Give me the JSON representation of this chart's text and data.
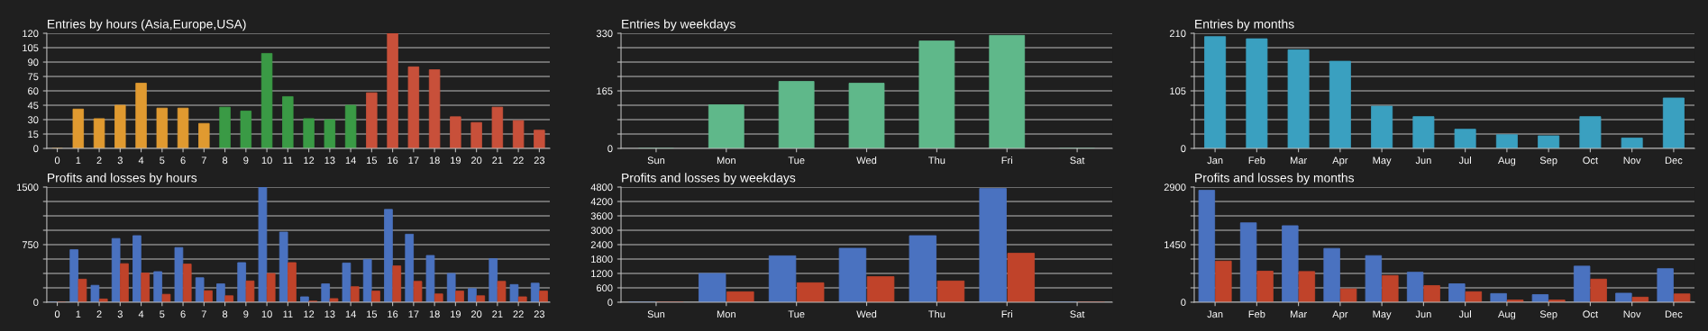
{
  "chart_data": [
    {
      "type": "bar",
      "title": "Entries by hours (Asia,Europe,USA)",
      "categories": [
        "0",
        "1",
        "2",
        "3",
        "4",
        "5",
        "6",
        "7",
        "8",
        "9",
        "10",
        "11",
        "12",
        "13",
        "14",
        "15",
        "16",
        "17",
        "18",
        "19",
        "20",
        "21",
        "22",
        "23"
      ],
      "values": [
        0,
        41,
        31,
        45,
        68,
        42,
        42,
        26,
        43,
        39,
        99,
        54,
        31,
        30,
        45,
        58,
        120,
        85,
        82,
        33,
        27,
        43,
        29,
        19
      ],
      "colors": [
        "#e09a30",
        "#e09a30",
        "#e09a30",
        "#e09a30",
        "#e09a30",
        "#e09a30",
        "#e09a30",
        "#e09a30",
        "#3a9a45",
        "#3a9a45",
        "#3a9a45",
        "#3a9a45",
        "#3a9a45",
        "#3a9a45",
        "#3a9a45",
        "#c8503a",
        "#c8503a",
        "#c8503a",
        "#c8503a",
        "#c8503a",
        "#c8503a",
        "#c8503a",
        "#c8503a",
        "#c8503a"
      ],
      "ylim": [
        0,
        120
      ],
      "yticks": [
        0,
        15,
        30,
        45,
        60,
        75,
        90,
        105,
        120
      ],
      "grid": "y"
    },
    {
      "type": "bar",
      "title": "Entries by weekdays",
      "categories": [
        "Sun",
        "Mon",
        "Tue",
        "Wed",
        "Thu",
        "Fri",
        "Sat"
      ],
      "values": [
        0,
        125,
        192,
        187,
        308,
        324,
        0
      ],
      "color": "#5fb88a",
      "ylim": [
        0,
        330
      ],
      "yticks": [
        0,
        {
          "value": 41.25,
          "label": null
        },
        {
          "value": 82.5,
          "label": null
        },
        {
          "value": 123.75,
          "label": null
        },
        165,
        {
          "value": 206.25,
          "label": null
        },
        {
          "value": 247.5,
          "label": null
        },
        {
          "value": 288.75,
          "label": null
        },
        330
      ],
      "grid": "y"
    },
    {
      "type": "bar",
      "title": "Entries by months",
      "categories": [
        "Jan",
        "Feb",
        "Mar",
        "Apr",
        "May",
        "Jun",
        "Jul",
        "Aug",
        "Sep",
        "Oct",
        "Nov",
        "Dec"
      ],
      "values": [
        204,
        200,
        180,
        159,
        77,
        58,
        35,
        25,
        23,
        58,
        19,
        92
      ],
      "color": "#3aa0c0",
      "ylim": [
        0,
        210
      ],
      "yticks": [
        0,
        {
          "value": 26.25,
          "label": null
        },
        {
          "value": 52.5,
          "label": null
        },
        {
          "value": 78.75,
          "label": null
        },
        105,
        {
          "value": 131.25,
          "label": null
        },
        {
          "value": 157.5,
          "label": null
        },
        {
          "value": 183.75,
          "label": null
        },
        210
      ],
      "grid": "y"
    },
    {
      "type": "bar",
      "title": "Profits and losses by hours",
      "categories": [
        "0",
        "1",
        "2",
        "3",
        "4",
        "5",
        "6",
        "7",
        "8",
        "9",
        "10",
        "11",
        "12",
        "13",
        "14",
        "15",
        "16",
        "17",
        "18",
        "19",
        "20",
        "21",
        "22",
        "23"
      ],
      "series": [
        {
          "color": "#4a72c0",
          "values": [
            0,
            684,
            220,
            830,
            867,
            398,
            712,
            319,
            239,
            516,
            1500,
            914,
            70,
            239,
            511,
            558,
            1209,
            886,
            609,
            375,
            178,
            567,
            230,
            248
          ]
        },
        {
          "color": "#c0432a",
          "values": [
            0,
            300,
            42,
            502,
            380,
            103,
            497,
            150,
            84,
            277,
            375,
            516,
            14,
            47,
            202,
            145,
            473,
            272,
            108,
            145,
            84,
            272,
            70,
            145
          ]
        }
      ],
      "ylim": [
        0,
        1500
      ],
      "yticks": [
        0,
        {
          "value": 187.5,
          "label": null
        },
        {
          "value": 375,
          "label": null
        },
        {
          "value": 562.5,
          "label": null
        },
        750,
        {
          "value": 937.5,
          "label": null
        },
        {
          "value": 1125,
          "label": null
        },
        {
          "value": 1312.5,
          "label": null
        },
        1500
      ],
      "grid": "y"
    },
    {
      "type": "bar",
      "title": "Profits and losses by weekdays",
      "categories": [
        "Sun",
        "Mon",
        "Tue",
        "Wed",
        "Thu",
        "Fri",
        "Sat"
      ],
      "series": [
        {
          "color": "#4a72c0",
          "values": [
            0,
            1200,
            1935,
            2250,
            2775,
            4740,
            0
          ]
        },
        {
          "color": "#c0432a",
          "values": [
            0,
            435,
            810,
            1065,
            885,
            2040,
            0
          ]
        }
      ],
      "ylim": [
        0,
        4800
      ],
      "yticks": [
        0,
        600,
        1200,
        1800,
        2400,
        3000,
        3600,
        4200,
        4800
      ],
      "grid": "y"
    },
    {
      "type": "bar",
      "title": "Profits and losses by months",
      "categories": [
        "Jan",
        "Feb",
        "Mar",
        "Apr",
        "May",
        "Jun",
        "Jul",
        "Aug",
        "Sep",
        "Oct",
        "Nov",
        "Dec"
      ],
      "series": [
        {
          "color": "#4a72c0",
          "values": [
            2818,
            2000,
            1927,
            1355,
            1173,
            755,
            464,
            218,
            191,
            909,
            227,
            845
          ]
        },
        {
          "color": "#c0432a",
          "values": [
            1036,
            782,
            773,
            336,
            673,
            418,
            264,
            55,
            55,
            582,
            127,
            209
          ]
        }
      ],
      "ylim": [
        0,
        2900
      ],
      "yticks": [
        0,
        {
          "value": 362.5,
          "label": null
        },
        {
          "value": 725,
          "label": null
        },
        {
          "value": 1087.5,
          "label": null
        },
        1450,
        {
          "value": 1812.5,
          "label": null
        },
        {
          "value": 2175,
          "label": null
        },
        {
          "value": 2537.5,
          "label": null
        },
        2900
      ],
      "grid": "y"
    }
  ]
}
